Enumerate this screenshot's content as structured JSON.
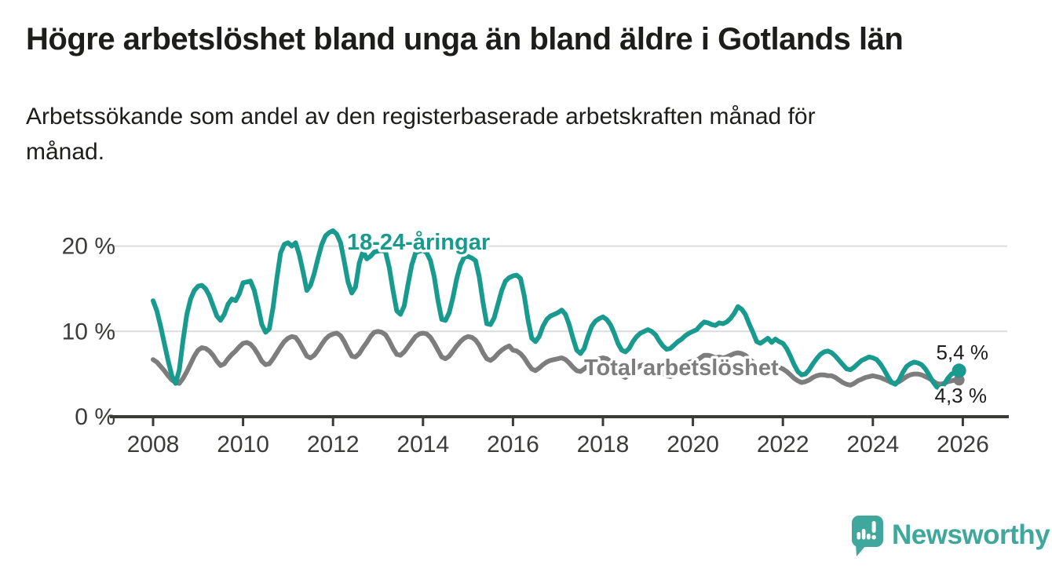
{
  "header": {
    "title": "Högre arbetslöshet bland unga än bland äldre i Gotlands län",
    "subtitle": "Arbetssökande som andel av den registerbaserade arbetskraften månad för månad.",
    "subtitle_lines": [
      "Arbetssökande som andel av den registerbaserade arbetskraften månad för",
      "månad."
    ]
  },
  "annotations": {
    "youth_series_label": "18-24-åringar",
    "total_series_label": "Total arbetslöshet",
    "youth_end_label": "5,4 %",
    "total_end_label": "4,3 %"
  },
  "branding": {
    "logo_text": "Newsworthy",
    "logo_icon": "speech-bubble-bar-chart-exclamation"
  },
  "colors": {
    "youth_line": "#189a8e",
    "total_line": "#7d7d7d",
    "title_text": "#1d1d1b",
    "axis_text": "#3c3c3b",
    "gridline": "#dcdcdc",
    "brand_teal": "#3fa79b"
  },
  "chart_data": {
    "type": "line",
    "title": "Högre arbetslöshet bland unga än bland äldre i Gotlands län",
    "subtitle": "Arbetssökande som andel av den registerbaserade arbetskraften månad för månad.",
    "x_unit": "month",
    "x_start": "2008-01",
    "x_end": "2025-12",
    "x_ticks": [
      2008,
      2010,
      2012,
      2014,
      2016,
      2018,
      2020,
      2022,
      2024,
      2026
    ],
    "y_ticks": [
      {
        "value": 0,
        "label": "0 %"
      },
      {
        "value": 10,
        "label": "10 %"
      },
      {
        "value": 20,
        "label": "20 %"
      }
    ],
    "ylim": [
      0,
      22.5
    ],
    "grid": "horizontal",
    "legend_position": "inline-labels",
    "series": [
      {
        "name": "Total arbetslöshet",
        "color": "#7d7d7d",
        "end_value": 4.3,
        "end_label": "4,3 %",
        "values": [
          6.7,
          6.4,
          5.9,
          5.4,
          4.8,
          4.3,
          4.0,
          3.9,
          4.5,
          5.3,
          6.2,
          7.1,
          7.8,
          8.1,
          8.0,
          7.7,
          7.2,
          6.5,
          6.0,
          6.2,
          6.8,
          7.3,
          7.7,
          8.2,
          8.6,
          8.7,
          8.5,
          8.0,
          7.3,
          6.5,
          6.1,
          6.2,
          6.8,
          7.5,
          8.2,
          8.8,
          9.2,
          9.4,
          9.3,
          8.7,
          7.9,
          7.1,
          6.9,
          7.2,
          7.8,
          8.5,
          9.1,
          9.5,
          9.7,
          9.8,
          9.5,
          8.8,
          7.9,
          7.1,
          7.0,
          7.4,
          8.1,
          8.7,
          9.4,
          9.9,
          10.0,
          9.9,
          9.6,
          8.9,
          8.0,
          7.3,
          7.2,
          7.6,
          8.2,
          8.8,
          9.4,
          9.7,
          9.8,
          9.7,
          9.3,
          8.6,
          7.8,
          7.0,
          6.8,
          7.1,
          7.7,
          8.3,
          8.8,
          9.2,
          9.4,
          9.3,
          9.0,
          8.4,
          7.5,
          6.8,
          6.6,
          6.9,
          7.4,
          7.8,
          8.1,
          8.3,
          7.8,
          7.7,
          7.4,
          6.9,
          6.2,
          5.6,
          5.4,
          5.7,
          6.1,
          6.4,
          6.6,
          6.7,
          6.8,
          6.9,
          6.7,
          6.3,
          5.8,
          5.4,
          5.3,
          5.6,
          6.0,
          6.4,
          6.7,
          6.8,
          6.9,
          6.8,
          6.5,
          6.0,
          5.4,
          4.8,
          4.6,
          4.9,
          5.3,
          5.7,
          6.0,
          6.1,
          6.2,
          6.1,
          5.9,
          5.5,
          5.1,
          4.8,
          4.7,
          4.9,
          5.3,
          5.7,
          6.1,
          6.4,
          6.5,
          6.6,
          6.9,
          7.2,
          7.2,
          7.1,
          6.9,
          7.0,
          6.9,
          7.0,
          7.2,
          7.4,
          7.5,
          7.4,
          7.2,
          6.8,
          6.4,
          6.0,
          5.8,
          5.9,
          6.0,
          5.9,
          5.9,
          5.8,
          5.6,
          5.3,
          4.9,
          4.5,
          4.2,
          4.0,
          4.1,
          4.3,
          4.6,
          4.8,
          4.9,
          4.9,
          4.8,
          4.8,
          4.6,
          4.3,
          4.0,
          3.8,
          3.7,
          3.9,
          4.2,
          4.4,
          4.6,
          4.7,
          4.8,
          4.7,
          4.6,
          4.4,
          4.2,
          4.0,
          3.9,
          4.1,
          4.4,
          4.7,
          4.9,
          5.0,
          5.0,
          4.9,
          4.7,
          4.5,
          4.2,
          3.9,
          3.8,
          3.9,
          4.1,
          4.2,
          4.3,
          4.3
        ]
      },
      {
        "name": "18-24-åringar",
        "color": "#189a8e",
        "end_value": 5.4,
        "end_label": "5,4 %",
        "values": [
          13.6,
          12.4,
          10.6,
          8.6,
          6.6,
          4.8,
          3.9,
          5.5,
          9.0,
          12.0,
          13.8,
          14.8,
          15.3,
          15.4,
          15.0,
          14.2,
          13.0,
          11.8,
          11.3,
          12.0,
          13.2,
          13.8,
          13.6,
          14.4,
          15.7,
          15.8,
          15.9,
          14.8,
          12.9,
          10.8,
          9.9,
          10.3,
          12.8,
          16.2,
          19.2,
          20.2,
          20.4,
          20.0,
          20.4,
          19.0,
          17.0,
          14.8,
          15.4,
          16.8,
          18.6,
          20.2,
          21.2,
          21.6,
          21.8,
          21.4,
          20.4,
          18.2,
          15.8,
          14.5,
          15.2,
          18.0,
          19.4,
          18.5,
          18.8,
          19.3,
          19.4,
          19.5,
          19.3,
          17.5,
          14.8,
          12.4,
          12.0,
          13.0,
          15.5,
          17.8,
          19.2,
          19.4,
          19.5,
          19.2,
          18.3,
          16.4,
          13.6,
          11.4,
          11.3,
          12.2,
          14.0,
          16.2,
          17.8,
          18.7,
          18.8,
          18.6,
          18.3,
          16.4,
          13.4,
          10.9,
          10.8,
          11.6,
          13.2,
          14.8,
          15.9,
          16.3,
          16.5,
          16.6,
          16.2,
          14.2,
          11.4,
          9.2,
          8.8,
          9.4,
          10.6,
          11.4,
          11.8,
          12.0,
          12.2,
          12.5,
          12.0,
          10.8,
          9.2,
          7.8,
          7.4,
          8.0,
          9.4,
          10.6,
          11.2,
          11.5,
          11.7,
          11.4,
          10.8,
          9.8,
          8.6,
          7.8,
          7.6,
          8.0,
          8.8,
          9.4,
          9.8,
          10.0,
          10.2,
          10.0,
          9.6,
          8.9,
          8.3,
          7.9,
          8.0,
          8.4,
          8.8,
          9.1,
          9.5,
          9.8,
          10.0,
          10.2,
          10.7,
          11.1,
          11.0,
          10.8,
          10.7,
          11.0,
          10.9,
          11.1,
          11.5,
          12.1,
          12.9,
          12.6,
          12.0,
          10.9,
          9.9,
          8.8,
          8.6,
          8.9,
          9.2,
          8.7,
          9.1,
          8.8,
          8.6,
          8.0,
          7.1,
          6.1,
          5.3,
          4.9,
          5.0,
          5.5,
          6.2,
          6.8,
          7.3,
          7.6,
          7.7,
          7.5,
          7.1,
          6.6,
          6.1,
          5.6,
          5.5,
          5.8,
          6.2,
          6.6,
          6.8,
          7.0,
          6.9,
          6.7,
          6.2,
          5.5,
          4.7,
          4.0,
          3.8,
          4.3,
          5.2,
          5.9,
          6.2,
          6.4,
          6.3,
          6.1,
          5.6,
          4.9,
          4.1,
          3.5,
          3.3,
          3.8,
          4.5,
          5.0,
          5.2,
          5.4
        ]
      }
    ]
  }
}
